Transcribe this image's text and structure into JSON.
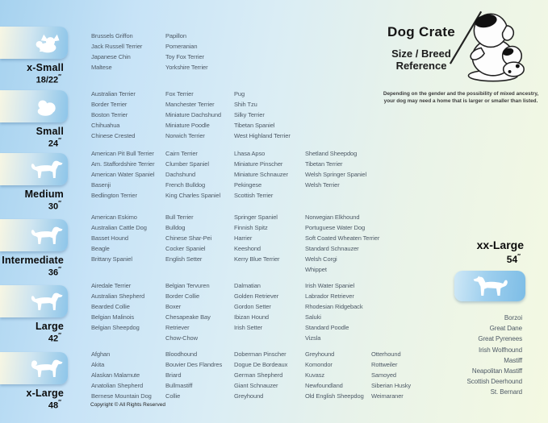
{
  "header": {
    "title": "Dog Crate",
    "subtitle": "Size / Breed Reference",
    "note": "Depending on the gender and the possibility of mixed ancestry, your dog may need  a home that is larger or smaller than listed.",
    "illustration_icon": "teacher-dog-and-puppy-illustration"
  },
  "footer": {
    "copyright": "Copyright © All Rights Reserved"
  },
  "colors": {
    "background_left": "#a6d2ef",
    "background_right": "#f4f9e2",
    "card_gradient_left": "#f7f6e3",
    "card_gradient_right": "#8dc5e9",
    "breed_text": "#4e5a66",
    "label_text": "#0c0c0c"
  },
  "sizes": [
    {
      "label": "x-Small",
      "dimension": "18/22",
      "unit": "″",
      "icon": "papillon-dog-silhouette-icon",
      "columns": [
        [
          "Brussels Griffon",
          "Jack Russell Terrier",
          "Japanese Chin",
          "Maltese"
        ],
        [
          "Papillon",
          "Pomeranian",
          "Toy Fox Terrier",
          "Yorkshire Terrier"
        ]
      ]
    },
    {
      "label": "Small",
      "dimension": "24",
      "unit": "″",
      "icon": "shih-tzu-dog-silhouette-icon",
      "columns": [
        [
          "Australian Terrier",
          "Border Terrier",
          "Boston Terrier",
          "Chihuahua",
          "Chinese Crested"
        ],
        [
          "Fox Terrier",
          "Manchester Terrier",
          "Miniature Dachshund",
          "Miniature Poodle",
          "Norwich Terrier"
        ],
        [
          "Pug",
          "Shih Tzu",
          "Silky Terrier",
          "Tibetan Spaniel",
          "West Highland Terrier"
        ]
      ]
    },
    {
      "label": "Medium",
      "dimension": "30",
      "unit": "″",
      "icon": "terrier-dog-silhouette-icon",
      "columns": [
        [
          "American Pit Bull Terrier",
          "Am. Staffordshire Terrier",
          "American Water Spaniel",
          "Basenji",
          "Bedlington Terrier"
        ],
        [
          "Cairn Terrier",
          "Clumber Spaniel",
          "Dachshund",
          "French Bulldog",
          "King Charles Spaniel"
        ],
        [
          "Lhasa Apso",
          "Miniature Pinscher",
          "Miniature Schnauzer",
          "Pekingese",
          "Scottish Terrier"
        ],
        [
          "Shetland Sheepdog",
          "Tibetan Terrier",
          "Welsh Springer Spaniel",
          "Welsh Terrier"
        ]
      ]
    },
    {
      "label": "Intermediate",
      "dimension": "36",
      "unit": "″",
      "icon": "spaniel-dog-silhouette-icon",
      "columns": [
        [
          "American Eskimo",
          "Australian Cattle Dog",
          "Basset Hound",
          "Beagle",
          "Brittany Spaniel"
        ],
        [
          "Bull Terrier",
          "Bulldog",
          "Chinese Shar-Pei",
          "Cocker Spaniel",
          "English Setter"
        ],
        [
          "Springer Spaniel",
          "Finnish Spitz",
          "Harrier",
          "Keeshond",
          "Kerry Blue Terrier"
        ],
        [
          "Norwegian Elkhound",
          "Portuguese Water Dog",
          "Soft Coated Wheaten Terrier",
          "Standard Schnauzer",
          "Welsh Corgi",
          "Whippet"
        ]
      ]
    },
    {
      "label": "Large",
      "dimension": "42",
      "unit": "″",
      "icon": "retriever-dog-silhouette-icon",
      "columns": [
        [
          "Airedale Terrier",
          "Australian Shepherd",
          "Bearded Collie",
          "Belgian Malinois",
          "Belgian Sheepdog"
        ],
        [
          "Belgian Tervuren",
          "Border Collie",
          "Boxer",
          "Chesapeake Bay Retriever",
          "Chow-Chow"
        ],
        [
          "Dalmatian",
          "Golden Retriever",
          "Gordon Setter",
          "Ibizan Hound",
          "Irish Setter"
        ],
        [
          "Irish Water Spaniel",
          "Labrador Retriever",
          "Rhodesian Ridgeback",
          "Saluki",
          "Standard Poodle",
          "Vizsla"
        ]
      ]
    },
    {
      "label": "x-Large",
      "dimension": "48",
      "unit": "″",
      "icon": "akita-dog-silhouette-icon",
      "columns": [
        [
          "Afghan",
          "Akita",
          "Alaskan Malamute",
          "Anatolian Shepherd",
          "Bernese Mountain Dog"
        ],
        [
          "Bloodhound",
          "Bouvier Des Flandres",
          "Briard",
          "Bullmastiff",
          "Collie"
        ],
        [
          "Doberman Pinscher",
          "Dogue De Bordeaux",
          "German Shepherd",
          "Giant Schnauzer",
          "Greyhound"
        ],
        [
          "Greyhound",
          "Komondor",
          "Kuvasz",
          "Newfoundland",
          "Old English Sheepdog"
        ],
        [
          "Otterhound",
          "Rottweiler",
          "Samoyed",
          "Siberian Husky",
          "Weimaraner"
        ]
      ]
    }
  ],
  "xxlarge": {
    "label": "xx-Large",
    "dimension": "54",
    "unit": "″",
    "icon": "great-dane-dog-silhouette-icon",
    "breeds": [
      "Borzoi",
      "Great Dane",
      "Great Pyrenees",
      "Irish Wolfhound",
      "Mastiff",
      "Neapolitan Mastiff",
      "Scottish Deerhound",
      "St. Bernard"
    ]
  }
}
